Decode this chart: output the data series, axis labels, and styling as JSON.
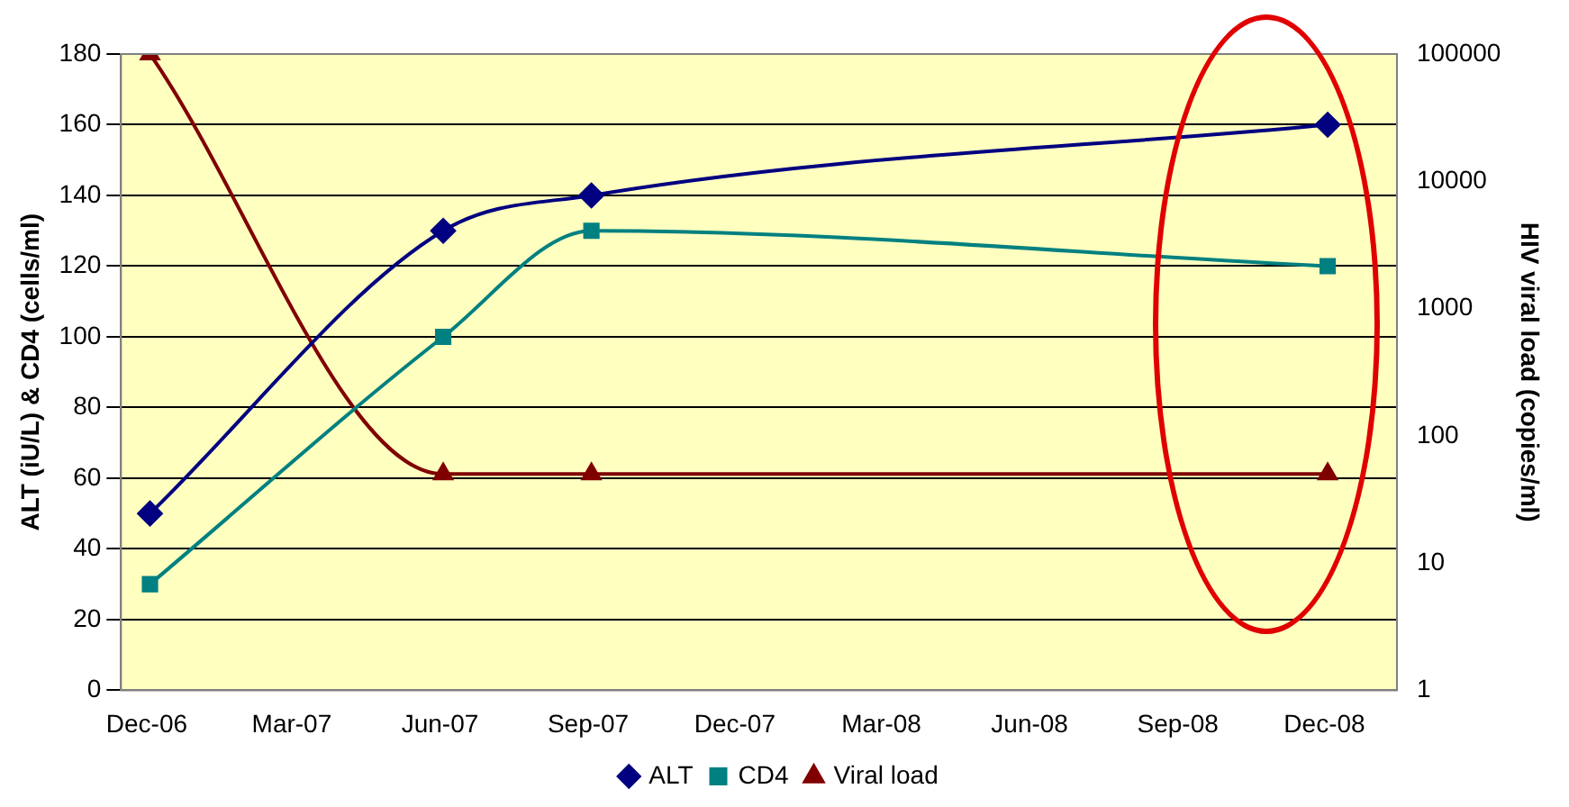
{
  "chart_data": {
    "type": "line",
    "ylabel": "ALT (iU/L) & CD4 (cells/ml)",
    "y2label": "HIV viral load (copies/ml)",
    "xlim": [
      "2006-11-15",
      "2009-01-15"
    ],
    "xticks": [
      {
        "value": "2006-12",
        "label": "Dec-06"
      },
      {
        "value": "2007-03",
        "label": "Mar-07"
      },
      {
        "value": "2007-06",
        "label": "Jun-07"
      },
      {
        "value": "2007-09",
        "label": "Sep-07"
      },
      {
        "value": "2007-12",
        "label": "Dec-07"
      },
      {
        "value": "2008-03",
        "label": "Mar-08"
      },
      {
        "value": "2008-06",
        "label": "Jun-08"
      },
      {
        "value": "2008-09",
        "label": "Sep-08"
      },
      {
        "value": "2008-12",
        "label": "Dec-08"
      }
    ],
    "x": [
      "2006-12-03",
      "2007-06-03",
      "2007-09-03",
      "2008-12-03"
    ],
    "ylim": [
      0,
      180
    ],
    "yticks": [
      0,
      20,
      40,
      60,
      80,
      100,
      120,
      140,
      160,
      180
    ],
    "y2lim": [
      1,
      100000
    ],
    "y2ticks": [
      1,
      10,
      100,
      1000,
      10000,
      100000
    ],
    "log": "y2",
    "grid": "y",
    "legend": "bottom",
    "series": [
      {
        "name": "ALT",
        "color": "#000080",
        "marker": "diamond",
        "values": [
          50,
          130,
          140,
          160
        ]
      },
      {
        "name": "CD4",
        "color": "#008080",
        "marker": "square",
        "values": [
          30,
          100,
          130,
          120
        ]
      },
      {
        "name": "Viral load",
        "color": "#800000",
        "marker": "triangle",
        "axis": "y2",
        "values": [
          100000,
          50,
          50,
          50
        ]
      }
    ]
  }
}
